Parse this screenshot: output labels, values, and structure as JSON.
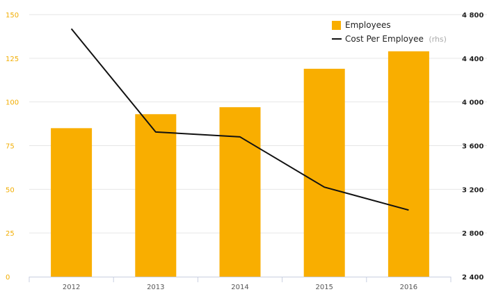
{
  "chart_data": {
    "type": "bar",
    "categories": [
      "2012",
      "2013",
      "2014",
      "2015",
      "2016"
    ],
    "series": [
      {
        "name": "Employees",
        "type": "bar",
        "axis": "left",
        "color": "#f9ae00",
        "values": [
          85,
          93,
          97,
          119,
          129
        ]
      },
      {
        "name": "Cost Per Employee",
        "type": "line",
        "axis": "right",
        "color": "#111111",
        "values": [
          4670,
          3725,
          3680,
          3220,
          3010
        ]
      }
    ],
    "legend": {
      "position": "top-right",
      "items": [
        {
          "label": "Employees",
          "suffix": ""
        },
        {
          "label": "Cost Per Employee",
          "suffix": "(rhs)"
        }
      ]
    },
    "y_left": {
      "ylim": [
        0,
        150
      ],
      "ticks": [
        "0",
        "25",
        "50",
        "75",
        "100",
        "125",
        "150"
      ],
      "tick_values": [
        0,
        25,
        50,
        75,
        100,
        125,
        150
      ]
    },
    "y_right": {
      "ylim": [
        2400,
        4800
      ],
      "ticks": [
        "2 400",
        "2 800",
        "3 200",
        "3 600",
        "4 000",
        "4 400",
        "4 800"
      ],
      "tick_values": [
        2400,
        2800,
        3200,
        3600,
        4000,
        4400,
        4800
      ]
    },
    "grid": true
  }
}
